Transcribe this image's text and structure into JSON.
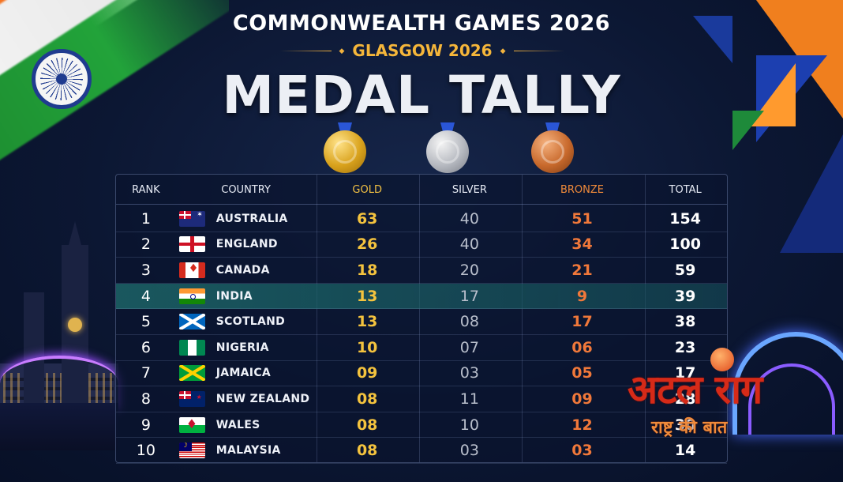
{
  "header": {
    "title": "COMMONWEALTH GAMES 2026",
    "subtitle": "GLASGOW 2026",
    "headline": "MEDAL TALLY"
  },
  "medal_icons": [
    "gold-medal-icon",
    "silver-medal-icon",
    "bronze-medal-icon"
  ],
  "colors": {
    "gold": "#f4c33e",
    "silver": "#b9bfcc",
    "bronze": "#f0783a",
    "highlight_row": "#1e6e6e",
    "background": "#0c1733"
  },
  "table": {
    "headers": {
      "rank": "RANK",
      "country": "COUNTRY",
      "gold": "GOLD",
      "silver": "SILVER",
      "bronze": "BRONZE",
      "total": "TOTAL"
    },
    "rows": [
      {
        "rank": "1",
        "flag": "australia-flag-icon",
        "country": "AUSTRALIA",
        "gold": "63",
        "silver": "40",
        "bronze": "51",
        "total": "154"
      },
      {
        "rank": "2",
        "flag": "england-flag-icon",
        "country": "ENGLAND",
        "gold": "26",
        "silver": "40",
        "bronze": "34",
        "total": "100"
      },
      {
        "rank": "3",
        "flag": "canada-flag-icon",
        "country": "CANADA",
        "gold": "18",
        "silver": "20",
        "bronze": "21",
        "total": "59"
      },
      {
        "rank": "4",
        "flag": "india-flag-icon",
        "country": "INDIA",
        "gold": "13",
        "silver": "17",
        "bronze": "9",
        "total": "39",
        "highlighted": true
      },
      {
        "rank": "5",
        "flag": "scotland-flag-icon",
        "country": "SCOTLAND",
        "gold": "13",
        "silver": "08",
        "bronze": "17",
        "total": "38"
      },
      {
        "rank": "6",
        "flag": "nigeria-flag-icon",
        "country": "NIGERIA",
        "gold": "10",
        "silver": "07",
        "bronze": "06",
        "total": "23"
      },
      {
        "rank": "7",
        "flag": "jamaica-flag-icon",
        "country": "JAMAICA",
        "gold": "09",
        "silver": "03",
        "bronze": "05",
        "total": "17"
      },
      {
        "rank": "8",
        "flag": "new-zealand-flag-icon",
        "country": "NEW ZEALAND",
        "gold": "08",
        "silver": "11",
        "bronze": "09",
        "total": "28"
      },
      {
        "rank": "9",
        "flag": "wales-flag-icon",
        "country": "WALES",
        "gold": "08",
        "silver": "10",
        "bronze": "12",
        "total": "30"
      },
      {
        "rank": "10",
        "flag": "malaysia-flag-icon",
        "country": "MALAYSIA",
        "gold": "08",
        "silver": "03",
        "bronze": "03",
        "total": "14"
      }
    ]
  },
  "watermark": {
    "logo_text": "अटल राग",
    "tagline": "राष्ट्र की बात"
  }
}
